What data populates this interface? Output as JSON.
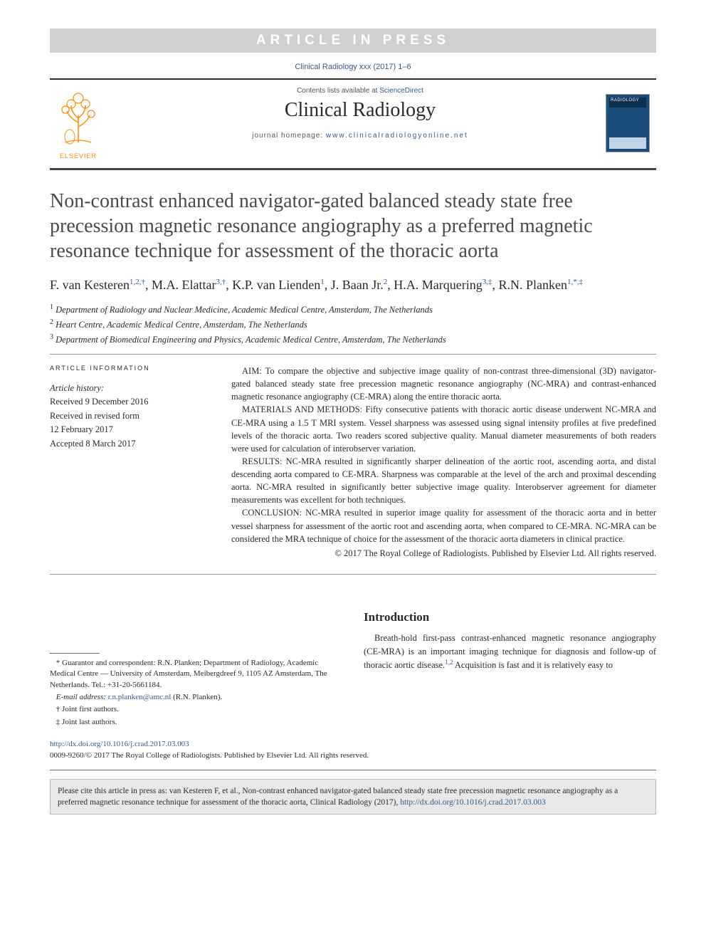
{
  "banner": {
    "text": "ARTICLE IN PRESS"
  },
  "citation_line": "Clinical Radiology xxx (2017) 1–6",
  "masthead": {
    "logo_label": "ELSEVIER",
    "contents_prefix": "Contents lists available at ",
    "contents_link": "ScienceDirect",
    "journal_name": "Clinical Radiology",
    "homepage_prefix": "journal homepage: ",
    "homepage_url": "www.clinicalradiologyonline.net",
    "cover_label": "RADIOLOGY"
  },
  "article": {
    "title": "Non-contrast enhanced navigator-gated balanced steady state free precession magnetic resonance angiography as a preferred magnetic resonance technique for assessment of the thoracic aorta",
    "authors_html": "F. van Kesteren<sup>1,2,†</sup>, M.A. Elattar<sup>3,†</sup>, K.P. van Lienden<sup>1</sup>, J. Baan Jr.<sup>2</sup>, H.A. Marquering<sup>3,‡</sup>, R.N. Planken<sup>1,*,‡</sup>",
    "affiliations": [
      "Department of Radiology and Nuclear Medicine, Academic Medical Centre, Amsterdam, The Netherlands",
      "Heart Centre, Academic Medical Centre, Amsterdam, The Netherlands",
      "Department of Biomedical Engineering and Physics, Academic Medical Centre, Amsterdam, The Netherlands"
    ]
  },
  "info": {
    "heading": "ARTICLE INFORMATION",
    "history_label": "Article history:",
    "received": "Received 9 December 2016",
    "revised1": "Received in revised form",
    "revised2": "12 February 2017",
    "accepted": "Accepted 8 March 2017"
  },
  "abstract": {
    "aim": "AIM: To compare the objective and subjective image quality of non-contrast three-dimensional (3D) navigator-gated balanced steady state free precession magnetic resonance angiography (NC-MRA) and contrast-enhanced magnetic resonance angiography (CE-MRA) along the entire thoracic aorta.",
    "methods": "MATERIALS AND METHODS: Fifty consecutive patients with thoracic aortic disease underwent NC-MRA and CE-MRA using a 1.5 T MRI system. Vessel sharpness was assessed using signal intensity profiles at five predefined levels of the thoracic aorta. Two readers scored subjective quality. Manual diameter measurements of both readers were used for calculation of interobserver variation.",
    "results": "RESULTS: NC-MRA resulted in significantly sharper delineation of the aortic root, ascending aorta, and distal descending aorta compared to CE-MRA. Sharpness was comparable at the level of the arch and proximal descending aorta. NC-MRA resulted in significantly better subjective image quality. Interobserver agreement for diameter measurements was excellent for both techniques.",
    "conclusion": "CONCLUSION: NC-MRA resulted in superior image quality for assessment of the thoracic aorta and in better vessel sharpness for assessment of the aortic root and ascending aorta, when compared to CE-MRA. NC-MRA can be considered the MRA technique of choice for the assessment of the thoracic aorta diameters in clinical practice.",
    "copyright": "© 2017 The Royal College of Radiologists. Published by Elsevier Ltd. All rights reserved."
  },
  "intro": {
    "heading": "Introduction",
    "p1_a": "Breath-hold first-pass contrast-enhanced magnetic resonance angiography (CE-MRA) is an important imaging technique for diagnosis and follow-up of thoracic aortic disease.",
    "p1_b": " Acquisition is fast and it is relatively easy to"
  },
  "footnotes": {
    "guarantor": "* Guarantor and correspondent: R.N. Planken; Department of Radiology, Academic Medical Centre — University of Amsterdam, Meibergdreef 9, 1105 AZ Amsterdam, The Netherlands. Tel.: +31-20-5661184.",
    "email_label": "E-mail address: ",
    "email": "r.n.planken@amc.nl",
    "email_suffix": " (R.N. Planken).",
    "dagger": "† Joint first authors.",
    "ddagger": "‡ Joint last authors."
  },
  "doi": {
    "url": "http://dx.doi.org/10.1016/j.crad.2017.03.003",
    "issn_line": "0009-9260/© 2017 The Royal College of Radiologists. Published by Elsevier Ltd. All rights reserved."
  },
  "citebox": {
    "text_a": "Please cite this article in press as: van Kesteren F, et al., Non-contrast enhanced navigator-gated balanced steady state free precession magnetic resonance angiography as a preferred magnetic resonance technique for assessment of the thoracic aorta, Clinical Radiology (2017), ",
    "link": "http://dx.doi.org/10.1016/j.crad.2017.03.003"
  },
  "colors": {
    "banner_bg": "#d0d0d0",
    "link": "#2e5c8a",
    "text": "#2a2a2a",
    "elsevier_orange": "#ff8c00",
    "cover_bg": "#1a4d7a",
    "citebox_bg": "#e8e8e8"
  }
}
